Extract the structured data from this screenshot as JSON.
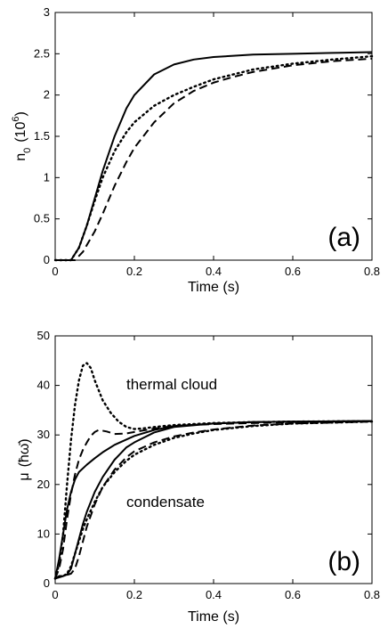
{
  "chart_data": [
    {
      "type": "line",
      "panel_label": "(a)",
      "xlabel": "Time  (s)",
      "ylabel_main": "n",
      "ylabel_sub": "0",
      "ylabel_unit_open": "(10",
      "ylabel_unit_sup": "6",
      "ylabel_unit_close": ")",
      "xlim": [
        0,
        0.8
      ],
      "ylim": [
        0,
        3
      ],
      "xticks": [
        0,
        0.2,
        0.4,
        0.6,
        0.8
      ],
      "xtick_labels": [
        "0",
        "0.2",
        "0.4",
        "0.6",
        "0.8"
      ],
      "yticks": [
        0,
        0.5,
        1,
        1.5,
        2,
        2.5,
        3
      ],
      "ytick_labels": [
        "0",
        "0.5",
        "1",
        "1.5",
        "2",
        "2.5",
        "3"
      ],
      "grid": false,
      "series": [
        {
          "style": "solid",
          "x": [
            0,
            0.04,
            0.06,
            0.08,
            0.1,
            0.12,
            0.15,
            0.18,
            0.2,
            0.25,
            0.3,
            0.35,
            0.4,
            0.5,
            0.6,
            0.7,
            0.8
          ],
          "y": [
            0,
            0,
            0.15,
            0.42,
            0.75,
            1.08,
            1.5,
            1.84,
            2.0,
            2.25,
            2.37,
            2.43,
            2.46,
            2.49,
            2.5,
            2.51,
            2.52
          ]
        },
        {
          "style": "dotted",
          "x": [
            0,
            0.04,
            0.06,
            0.08,
            0.1,
            0.12,
            0.15,
            0.18,
            0.2,
            0.25,
            0.3,
            0.35,
            0.4,
            0.5,
            0.6,
            0.7,
            0.8
          ],
          "y": [
            0,
            0,
            0.15,
            0.42,
            0.72,
            1.0,
            1.32,
            1.55,
            1.67,
            1.87,
            2.0,
            2.1,
            2.19,
            2.31,
            2.38,
            2.43,
            2.47
          ]
        },
        {
          "style": "dashed",
          "x": [
            0,
            0.05,
            0.07,
            0.1,
            0.12,
            0.15,
            0.18,
            0.2,
            0.25,
            0.3,
            0.35,
            0.4,
            0.45,
            0.5,
            0.6,
            0.7,
            0.8
          ],
          "y": [
            0,
            0,
            0.1,
            0.35,
            0.56,
            0.9,
            1.19,
            1.36,
            1.67,
            1.9,
            2.05,
            2.15,
            2.22,
            2.28,
            2.36,
            2.41,
            2.44
          ]
        }
      ]
    },
    {
      "type": "line",
      "panel_label": "(b)",
      "xlabel": "Time  (s)",
      "ylabel_main": "μ",
      "ylabel_unit": "(ħω̄)",
      "xlim": [
        0,
        0.8
      ],
      "ylim": [
        0,
        50
      ],
      "xticks": [
        0,
        0.2,
        0.4,
        0.6,
        0.8
      ],
      "xtick_labels": [
        "0",
        "0.2",
        "0.4",
        "0.6",
        "0.8"
      ],
      "yticks": [
        0,
        10,
        20,
        30,
        40,
        50
      ],
      "ytick_labels": [
        "0",
        "10",
        "20",
        "30",
        "40",
        "50"
      ],
      "grid": false,
      "annotations": [
        {
          "text": "thermal cloud",
          "x": 0.41,
          "y": 39.5
        },
        {
          "text": "condensate",
          "x": 0.39,
          "y": 16.0
        }
      ],
      "series": [
        {
          "style": "dotted",
          "group": "thermal cloud",
          "x": [
            0,
            0.01,
            0.02,
            0.03,
            0.04,
            0.05,
            0.06,
            0.07,
            0.08,
            0.09,
            0.1,
            0.12,
            0.14,
            0.16,
            0.18,
            0.2,
            0.22,
            0.25,
            0.3,
            0.4,
            0.5,
            0.6,
            0.8
          ],
          "y": [
            1,
            4,
            10,
            20,
            29,
            36,
            41,
            44,
            44.5,
            43.5,
            41,
            37,
            34.5,
            32.7,
            31.6,
            31.2,
            31.3,
            31.6,
            32.0,
            32.4,
            32.6,
            32.7,
            32.8
          ]
        },
        {
          "style": "dashed",
          "group": "thermal cloud",
          "x": [
            0,
            0.01,
            0.02,
            0.03,
            0.04,
            0.05,
            0.06,
            0.07,
            0.08,
            0.09,
            0.1,
            0.11,
            0.13,
            0.15,
            0.18,
            0.2,
            0.25,
            0.3,
            0.4,
            0.6,
            0.8
          ],
          "y": [
            1,
            3,
            7,
            13,
            18,
            22,
            25,
            27,
            28.5,
            29.8,
            30.6,
            31.0,
            30.7,
            30.2,
            30.3,
            30.6,
            31.3,
            31.8,
            32.2,
            32.6,
            32.8
          ]
        },
        {
          "style": "solid",
          "group": "thermal cloud",
          "x": [
            0,
            0.01,
            0.02,
            0.03,
            0.04,
            0.05,
            0.06,
            0.08,
            0.1,
            0.12,
            0.15,
            0.2,
            0.25,
            0.3,
            0.4,
            0.5,
            0.6,
            0.8
          ],
          "y": [
            1,
            5,
            10,
            15,
            18.5,
            21,
            22.5,
            24,
            25.3,
            26.5,
            28,
            29.8,
            31,
            31.8,
            32.3,
            32.6,
            32.7,
            32.8
          ]
        },
        {
          "style": "solid",
          "group": "condensate",
          "x": [
            0,
            0.01,
            0.02,
            0.03,
            0.04,
            0.05,
            0.06,
            0.07,
            0.08,
            0.1,
            0.12,
            0.15,
            0.18,
            0.2,
            0.25,
            0.3,
            0.4,
            0.5,
            0.6,
            0.8
          ],
          "y": [
            1,
            1.5,
            1.5,
            1.8,
            3,
            6,
            9,
            12,
            14.5,
            18.5,
            21.5,
            25,
            27.5,
            28.5,
            30.5,
            31.6,
            32.3,
            32.6,
            32.7,
            32.8
          ]
        },
        {
          "style": "dotted",
          "group": "condensate",
          "x": [
            0,
            0.01,
            0.02,
            0.03,
            0.04,
            0.05,
            0.06,
            0.07,
            0.08,
            0.1,
            0.12,
            0.15,
            0.18,
            0.2,
            0.25,
            0.3,
            0.35,
            0.4,
            0.5,
            0.6,
            0.8
          ],
          "y": [
            1,
            1.5,
            1.5,
            2,
            3.5,
            6,
            8.5,
            11,
            13,
            16.5,
            19.5,
            22.5,
            24.8,
            26,
            28,
            29.4,
            30.3,
            31,
            31.8,
            32.3,
            32.7
          ]
        },
        {
          "style": "dashed",
          "group": "condensate",
          "x": [
            0,
            0.02,
            0.04,
            0.05,
            0.06,
            0.07,
            0.08,
            0.1,
            0.12,
            0.15,
            0.18,
            0.2,
            0.25,
            0.3,
            0.35,
            0.4,
            0.5,
            0.6,
            0.8
          ],
          "y": [
            1,
            1.5,
            2,
            3,
            5.5,
            8.5,
            11.5,
            16,
            19.5,
            23,
            25.5,
            26.7,
            28.5,
            29.7,
            30.5,
            31.1,
            31.9,
            32.3,
            32.7
          ]
        }
      ]
    }
  ]
}
